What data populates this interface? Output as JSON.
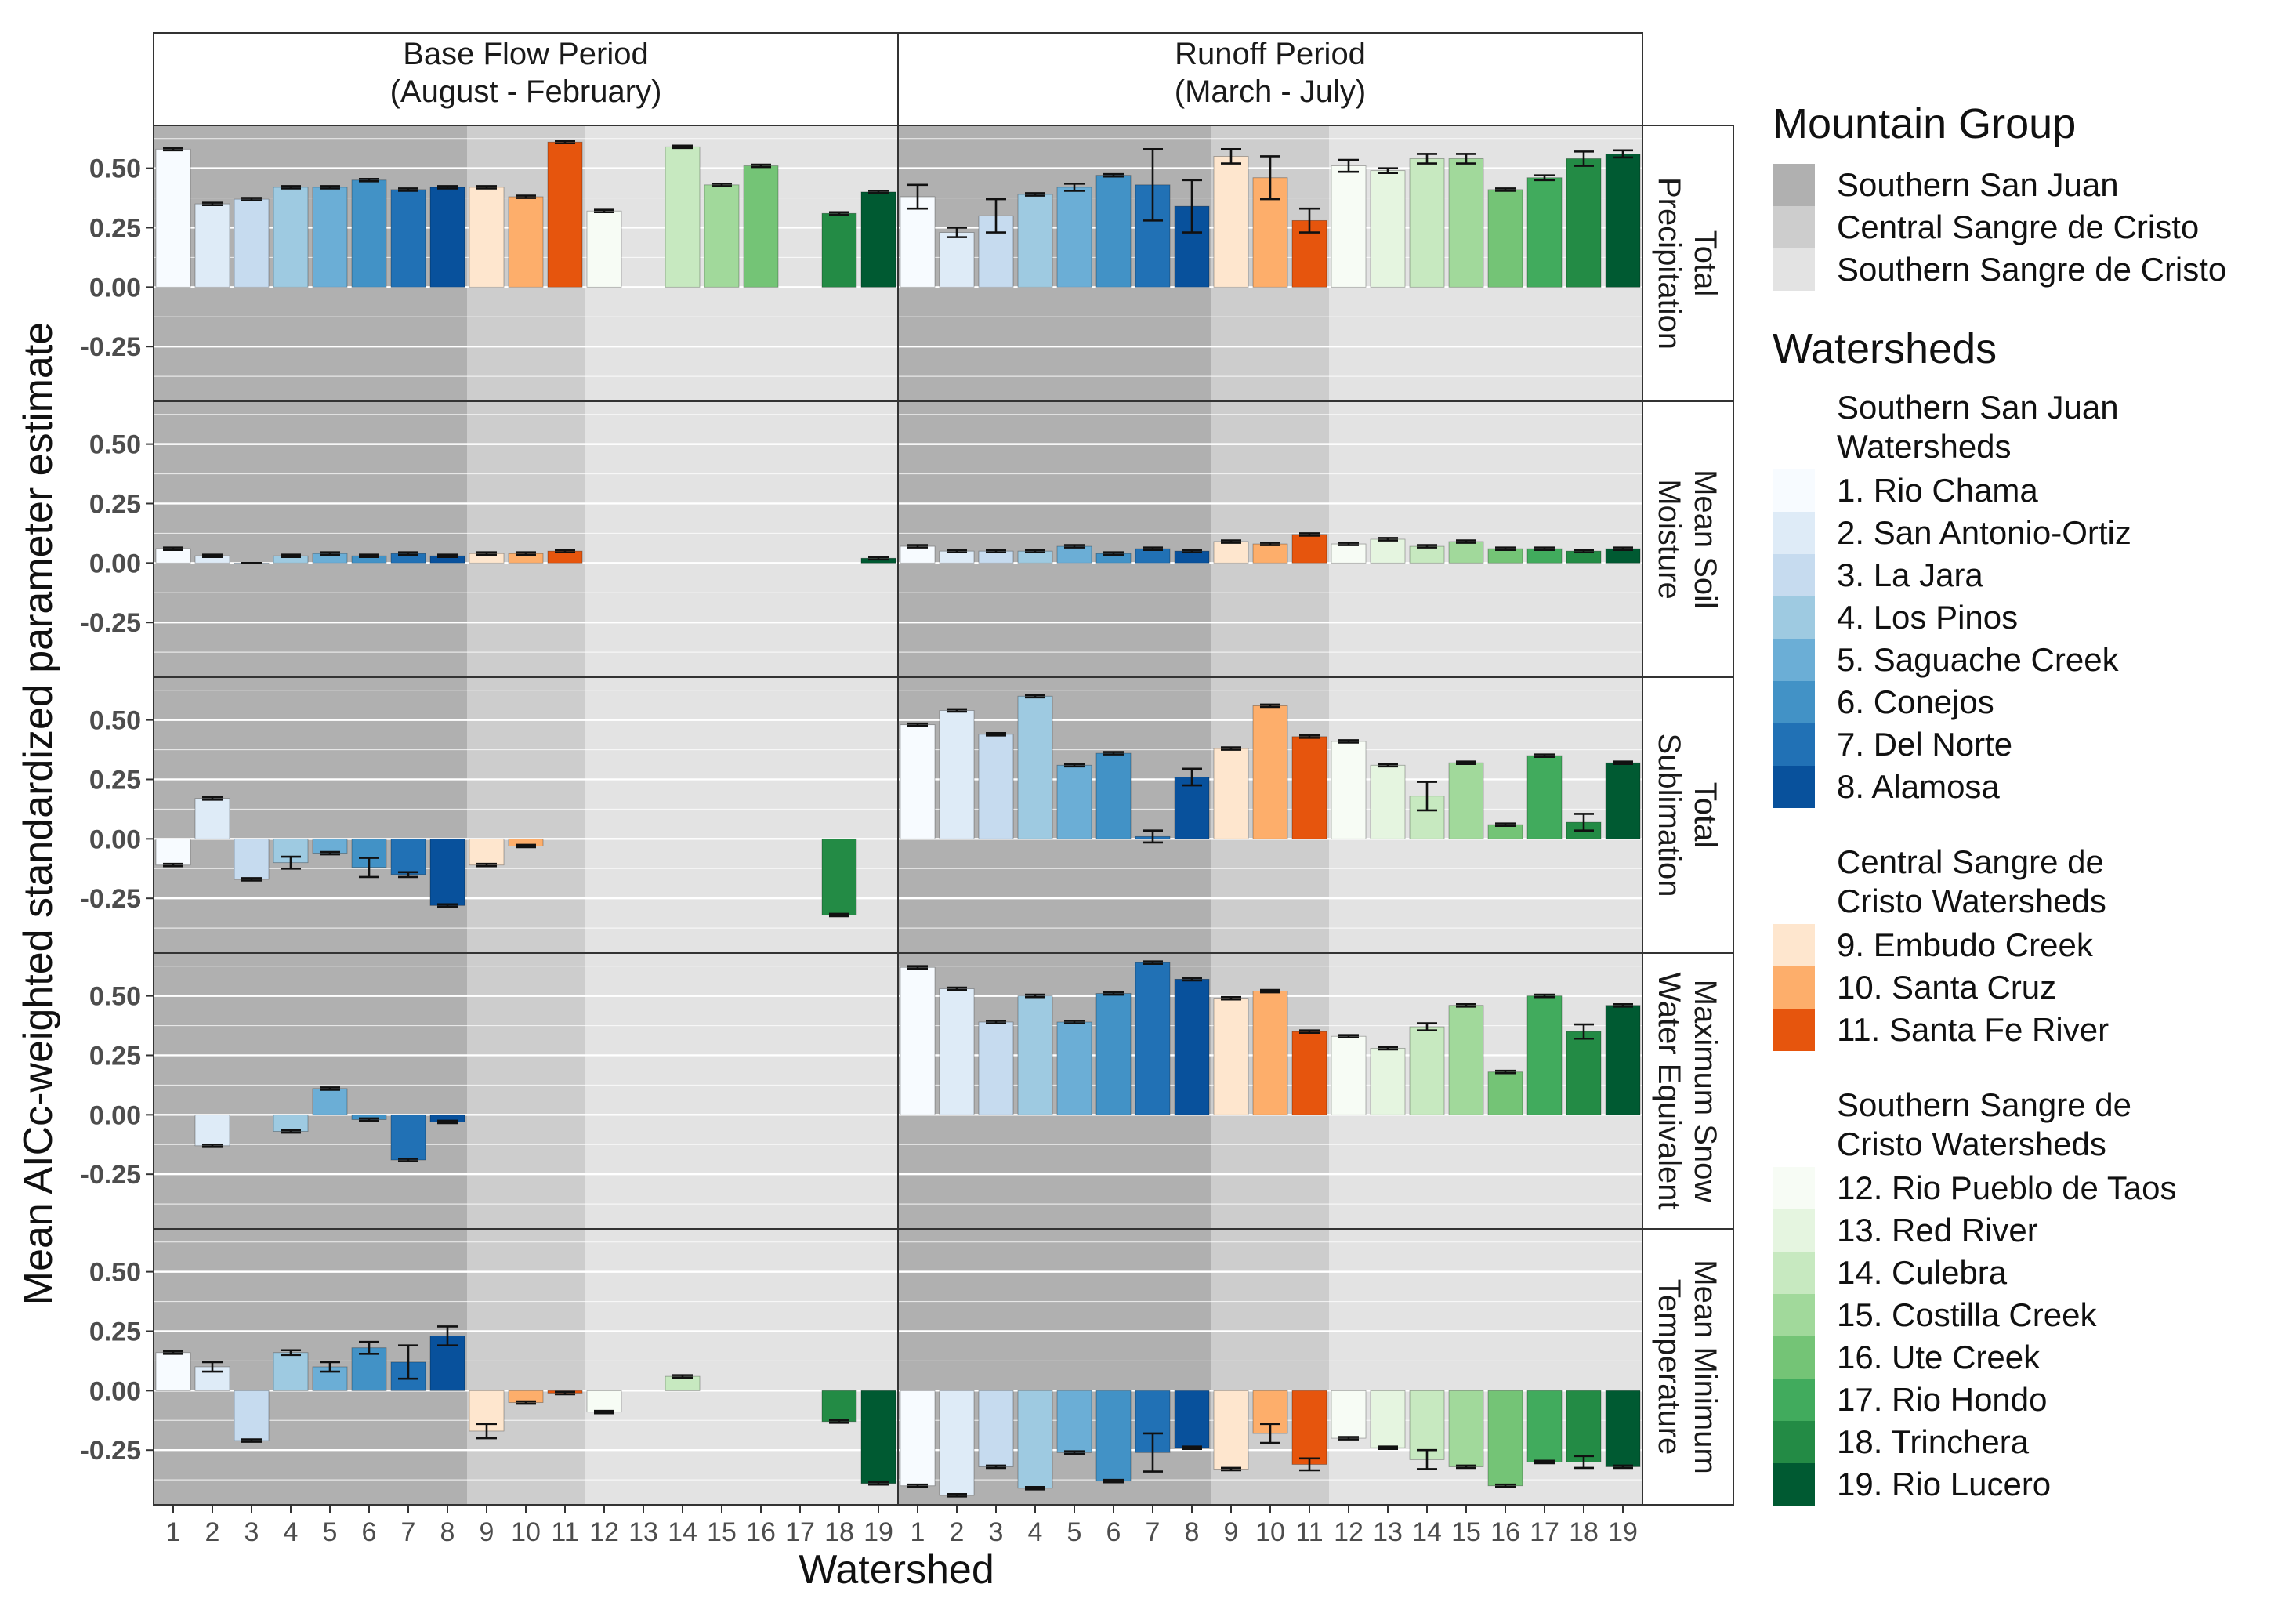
{
  "chart_data": {
    "type": "bar",
    "title": "",
    "xlabel": "Watershed",
    "ylabel": "Mean AICc-weighted standardized parameter estimate",
    "ylim": [
      -0.48,
      0.68
    ],
    "yticks": [
      -0.25,
      0.0,
      0.25,
      0.5
    ],
    "ytick_labels": [
      "-0.25",
      "0.00",
      "0.25",
      "0.50"
    ],
    "categories": [
      "1",
      "2",
      "3",
      "4",
      "5",
      "6",
      "7",
      "8",
      "9",
      "10",
      "11",
      "12",
      "13",
      "14",
      "15",
      "16",
      "17",
      "18",
      "19"
    ],
    "columns": [
      {
        "key": "base",
        "label": "Base Flow Period\n(August - February)"
      },
      {
        "key": "runoff",
        "label": "Runoff Period\n(March - July)"
      }
    ],
    "rows": [
      {
        "key": "precip",
        "label": "Total\nPrecipitation"
      },
      {
        "key": "soil",
        "label": "Mean Soil\nMoisture"
      },
      {
        "key": "subl",
        "label": "Total\nSublimation"
      },
      {
        "key": "swe",
        "label": "Maximum Snow\nWater Equivalent"
      },
      {
        "key": "tmin",
        "label": "Mean Minimum\nTemperature"
      }
    ],
    "panels": {
      "base": {
        "precip": {
          "values": [
            0.58,
            0.35,
            0.37,
            0.42,
            0.42,
            0.45,
            0.41,
            0.42,
            0.42,
            0.38,
            0.61,
            0.32,
            null,
            0.59,
            0.43,
            0.51,
            null,
            0.31,
            0.4
          ],
          "errors": [
            0.005,
            0.005,
            0.005,
            0.005,
            0.005,
            0.005,
            0.005,
            0.005,
            0.005,
            0.005,
            0.005,
            0.005,
            0,
            0.005,
            0.005,
            0.005,
            0,
            0.005,
            0.005
          ]
        },
        "soil": {
          "values": [
            0.06,
            0.03,
            0.0,
            0.03,
            0.04,
            0.03,
            0.04,
            0.03,
            0.04,
            0.04,
            0.05,
            null,
            null,
            null,
            null,
            null,
            null,
            null,
            0.02
          ],
          "errors": [
            0.005,
            0.005,
            0,
            0.005,
            0.005,
            0.005,
            0.005,
            0.005,
            0.005,
            0.005,
            0.005,
            0,
            0,
            0,
            0,
            0,
            0,
            0,
            0.005
          ]
        },
        "subl": {
          "values": [
            -0.11,
            0.17,
            -0.17,
            -0.1,
            -0.06,
            -0.12,
            -0.15,
            -0.28,
            -0.11,
            -0.03,
            null,
            null,
            null,
            null,
            null,
            null,
            null,
            -0.32,
            null
          ],
          "errors": [
            0.005,
            0.005,
            0.005,
            0.025,
            0.005,
            0.04,
            0.01,
            0.005,
            0.005,
            0.005,
            0,
            0,
            0,
            0,
            0,
            0,
            0,
            0.005,
            0
          ]
        },
        "swe": {
          "values": [
            null,
            -0.13,
            null,
            -0.07,
            0.11,
            -0.02,
            -0.19,
            -0.03,
            null,
            null,
            null,
            null,
            null,
            null,
            null,
            null,
            null,
            null,
            null
          ],
          "errors": [
            0,
            0.005,
            0,
            0.005,
            0.005,
            0.005,
            0.005,
            0.005,
            0,
            0,
            0,
            0,
            0,
            0,
            0,
            0,
            0,
            0,
            0
          ]
        },
        "tmin": {
          "values": [
            0.16,
            0.1,
            -0.21,
            0.16,
            0.1,
            0.18,
            0.12,
            0.23,
            -0.17,
            -0.05,
            -0.01,
            -0.09,
            null,
            0.06,
            null,
            null,
            null,
            -0.13,
            -0.39
          ],
          "errors": [
            0.005,
            0.02,
            0.005,
            0.01,
            0.02,
            0.025,
            0.07,
            0.04,
            0.03,
            0.005,
            0.005,
            0.005,
            0,
            0.005,
            0,
            0,
            0,
            0.005,
            0.005
          ]
        }
      },
      "runoff": {
        "precip": {
          "values": [
            0.38,
            0.23,
            0.3,
            0.39,
            0.42,
            0.47,
            0.43,
            0.34,
            0.55,
            0.46,
            0.28,
            0.51,
            0.49,
            0.54,
            0.54,
            0.41,
            0.46,
            0.54,
            0.56
          ],
          "errors": [
            0.05,
            0.02,
            0.07,
            0.005,
            0.015,
            0.005,
            0.15,
            0.11,
            0.03,
            0.09,
            0.05,
            0.025,
            0.01,
            0.02,
            0.02,
            0.005,
            0.01,
            0.03,
            0.015
          ]
        },
        "soil": {
          "values": [
            0.07,
            0.05,
            0.05,
            0.05,
            0.07,
            0.04,
            0.06,
            0.05,
            0.09,
            0.08,
            0.12,
            0.08,
            0.1,
            0.07,
            0.09,
            0.06,
            0.06,
            0.05,
            0.06
          ],
          "errors": [
            0.005,
            0.005,
            0.005,
            0.005,
            0.005,
            0.005,
            0.005,
            0.005,
            0.005,
            0.005,
            0.005,
            0.005,
            0.005,
            0.005,
            0.005,
            0.005,
            0.005,
            0.005,
            0.005
          ]
        },
        "subl": {
          "values": [
            0.48,
            0.54,
            0.44,
            0.6,
            0.31,
            0.36,
            0.01,
            0.26,
            0.38,
            0.56,
            0.43,
            0.41,
            0.31,
            0.18,
            0.32,
            0.06,
            0.35,
            0.07,
            0.32
          ],
          "errors": [
            0.005,
            0.005,
            0.005,
            0.005,
            0.005,
            0.005,
            0.025,
            0.035,
            0.005,
            0.005,
            0.005,
            0.005,
            0.005,
            0.06,
            0.005,
            0.005,
            0.005,
            0.035,
            0.005
          ]
        },
        "swe": {
          "values": [
            0.62,
            0.53,
            0.39,
            0.5,
            0.39,
            0.51,
            0.64,
            0.57,
            0.49,
            0.52,
            0.35,
            0.33,
            0.28,
            0.37,
            0.46,
            0.18,
            0.5,
            0.35,
            0.46
          ],
          "errors": [
            0.005,
            0.005,
            0.005,
            0.005,
            0.005,
            0.005,
            0.005,
            0.005,
            0.005,
            0.005,
            0.005,
            0.005,
            0.005,
            0.015,
            0.005,
            0.005,
            0.005,
            0.03,
            0.005
          ]
        },
        "tmin": {
          "values": [
            -0.4,
            -0.44,
            -0.32,
            -0.41,
            -0.26,
            -0.38,
            -0.26,
            -0.24,
            -0.33,
            -0.18,
            -0.31,
            -0.2,
            -0.24,
            -0.29,
            -0.32,
            -0.4,
            -0.3,
            -0.3,
            -0.32
          ],
          "errors": [
            0.005,
            0.005,
            0.005,
            0.005,
            0.005,
            0.005,
            0.08,
            0.005,
            0.005,
            0.04,
            0.025,
            0.005,
            0.005,
            0.04,
            0.005,
            0.005,
            0.005,
            0.025,
            0.005
          ]
        }
      }
    },
    "background_groups": [
      {
        "label": "Southern San Juan",
        "from": 1,
        "to": 8,
        "color": "#b0b0b0"
      },
      {
        "label": "Central Sangre de Cristo",
        "from": 9,
        "to": 11,
        "color": "#cdcdcd"
      },
      {
        "label": "Southern Sangre de Cristo",
        "from": 12,
        "to": 19,
        "color": "#e3e3e3"
      }
    ],
    "bar_colors": [
      "#f7fbff",
      "#deebf7",
      "#c6dbef",
      "#9ecae1",
      "#6baed6",
      "#4292c6",
      "#2171b5",
      "#08519c",
      "#fee6ce",
      "#fdae6b",
      "#e6550d",
      "#f7fcf5",
      "#e5f5e0",
      "#c7e9c0",
      "#a1d99b",
      "#74c476",
      "#41ab5d",
      "#238b45",
      "#005a32"
    ]
  },
  "legend": {
    "mountain_title": "Mountain Group",
    "mountain_items": [
      {
        "label": "Southern San Juan",
        "color": "#b0b0b0"
      },
      {
        "label": "Central Sangre de Cristo",
        "color": "#cdcdcd"
      },
      {
        "label": "Southern Sangre de Cristo",
        "color": "#e3e3e3"
      }
    ],
    "watersheds_title": "Watersheds",
    "groups": [
      {
        "title": "Southern San Juan\nWatersheds",
        "items": [
          {
            "label": "1. Rio Chama",
            "color": "#f7fbff"
          },
          {
            "label": "2. San Antonio-Ortiz",
            "color": "#deebf7"
          },
          {
            "label": "3. La Jara",
            "color": "#c6dbef"
          },
          {
            "label": "4. Los Pinos",
            "color": "#9ecae1"
          },
          {
            "label": "5. Saguache Creek",
            "color": "#6baed6"
          },
          {
            "label": "6. Conejos",
            "color": "#4292c6"
          },
          {
            "label": "7. Del Norte",
            "color": "#2171b5"
          },
          {
            "label": "8. Alamosa",
            "color": "#08519c"
          }
        ]
      },
      {
        "title": "Central Sangre de\nCristo Watersheds",
        "items": [
          {
            "label": "9. Embudo Creek",
            "color": "#fee6ce"
          },
          {
            "label": "10. Santa Cruz",
            "color": "#fdae6b"
          },
          {
            "label": "11. Santa Fe River",
            "color": "#e6550d"
          }
        ]
      },
      {
        "title": "Southern Sangre de\nCristo Watersheds",
        "items": [
          {
            "label": "12. Rio Pueblo de Taos",
            "color": "#f7fcf5"
          },
          {
            "label": "13. Red River",
            "color": "#e5f5e0"
          },
          {
            "label": "14. Culebra",
            "color": "#c7e9c0"
          },
          {
            "label": "15. Costilla Creek",
            "color": "#a1d99b"
          },
          {
            "label": "16. Ute Creek",
            "color": "#74c476"
          },
          {
            "label": "17. Rio Hondo",
            "color": "#41ab5d"
          },
          {
            "label": "18. Trinchera",
            "color": "#238b45"
          },
          {
            "label": "19. Rio Lucero",
            "color": "#005a32"
          }
        ]
      }
    ]
  }
}
